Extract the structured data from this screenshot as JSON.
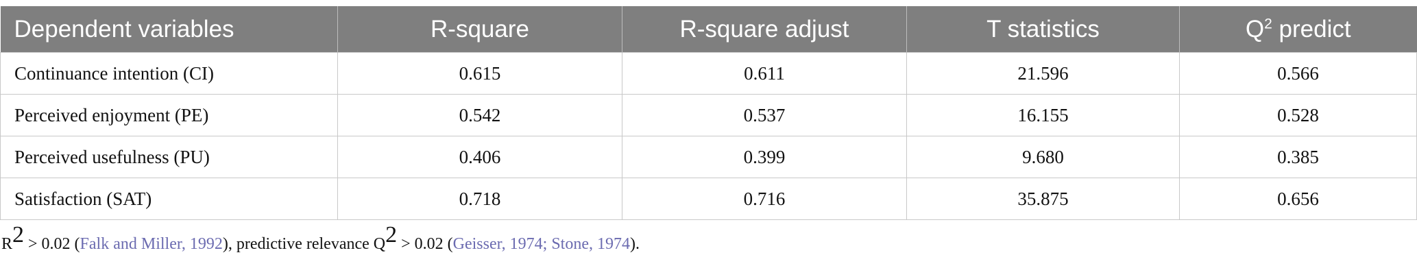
{
  "table": {
    "header": [
      {
        "text": "Dependent variables"
      },
      {
        "text": "R-square"
      },
      {
        "text": "R-square adjust"
      },
      {
        "text": "T statistics"
      },
      {
        "text": "Q",
        "sup": "2",
        "rest": " predict"
      }
    ],
    "rows": [
      [
        "Continuance intention (CI)",
        "0.615",
        "0.611",
        "21.596",
        "0.566"
      ],
      [
        "Perceived enjoyment (PE)",
        "0.542",
        "0.537",
        "16.155",
        "0.528"
      ],
      [
        "Perceived usefulness (PU)",
        "0.406",
        "0.399",
        "9.680",
        "0.385"
      ],
      [
        "Satisfaction (SAT)",
        "0.718",
        "0.716",
        "35.875",
        "0.656"
      ]
    ]
  },
  "footnote": [
    {
      "text": "R",
      "kind": "plain"
    },
    {
      "text": "2",
      "kind": "sup"
    },
    {
      "text": " > 0.02 (",
      "kind": "plain"
    },
    {
      "text": "Falk and Miller, 1992",
      "kind": "link"
    },
    {
      "text": "), predictive relevance Q",
      "kind": "plain"
    },
    {
      "text": "2",
      "kind": "sup"
    },
    {
      "text": " > 0.02 (",
      "kind": "plain"
    },
    {
      "text": "Geisser, 1974; Stone, 1974",
      "kind": "link"
    },
    {
      "text": ").",
      "kind": "plain"
    }
  ]
}
